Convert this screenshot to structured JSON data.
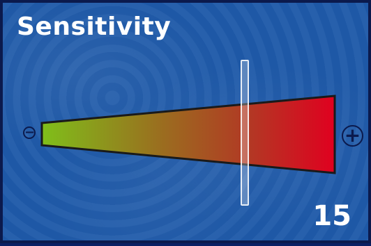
{
  "panel": {
    "title": "Sensitivity",
    "value": "15",
    "minus_glyph": "−",
    "plus_glyph": "+",
    "slider": {
      "min_label": "minus",
      "max_label": "plus",
      "level_fraction": 0.71,
      "gradient_start_color": "#7fbf1a",
      "gradient_end_color": "#e0001f"
    }
  }
}
